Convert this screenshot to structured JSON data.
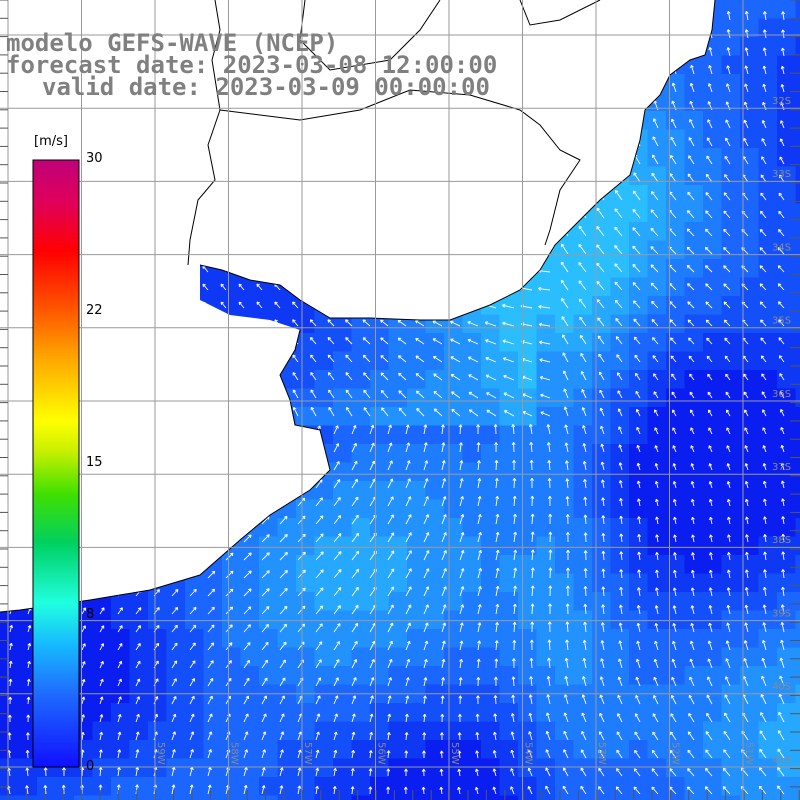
{
  "title": {
    "line1": "modelo GEFS-WAVE (NCEP)",
    "line2": "forecast date: 2023-03-08 12:00:00",
    "line3": "valid date: 2023-03-09 00:00:00"
  },
  "colorbar": {
    "unit": "[m/s]",
    "labels": [
      "30",
      "22",
      "15",
      "8",
      "0"
    ],
    "min": 0,
    "max": 30,
    "colors": [
      "#1010ff",
      "#1e6bff",
      "#16b8ff",
      "#20ffe0",
      "#00d060",
      "#40e000",
      "#c8f000",
      "#ffff00",
      "#ffa000",
      "#ff5000",
      "#ff0000",
      "#e0005a",
      "#c0007a"
    ]
  },
  "map": {
    "land_color": "#ffffff",
    "coastline_color": "#000000",
    "grid_color": "#9a9a9a",
    "arrow_color": "#ffffff",
    "lat_labels": [
      "32S",
      "33S",
      "34S",
      "35S",
      "36S",
      "37S",
      "38S",
      "39S",
      "40S",
      "41S"
    ],
    "lon_labels": [
      "59W",
      "58W",
      "57W",
      "56W",
      "55W",
      "54W",
      "53W",
      "52W",
      "51W"
    ]
  }
}
